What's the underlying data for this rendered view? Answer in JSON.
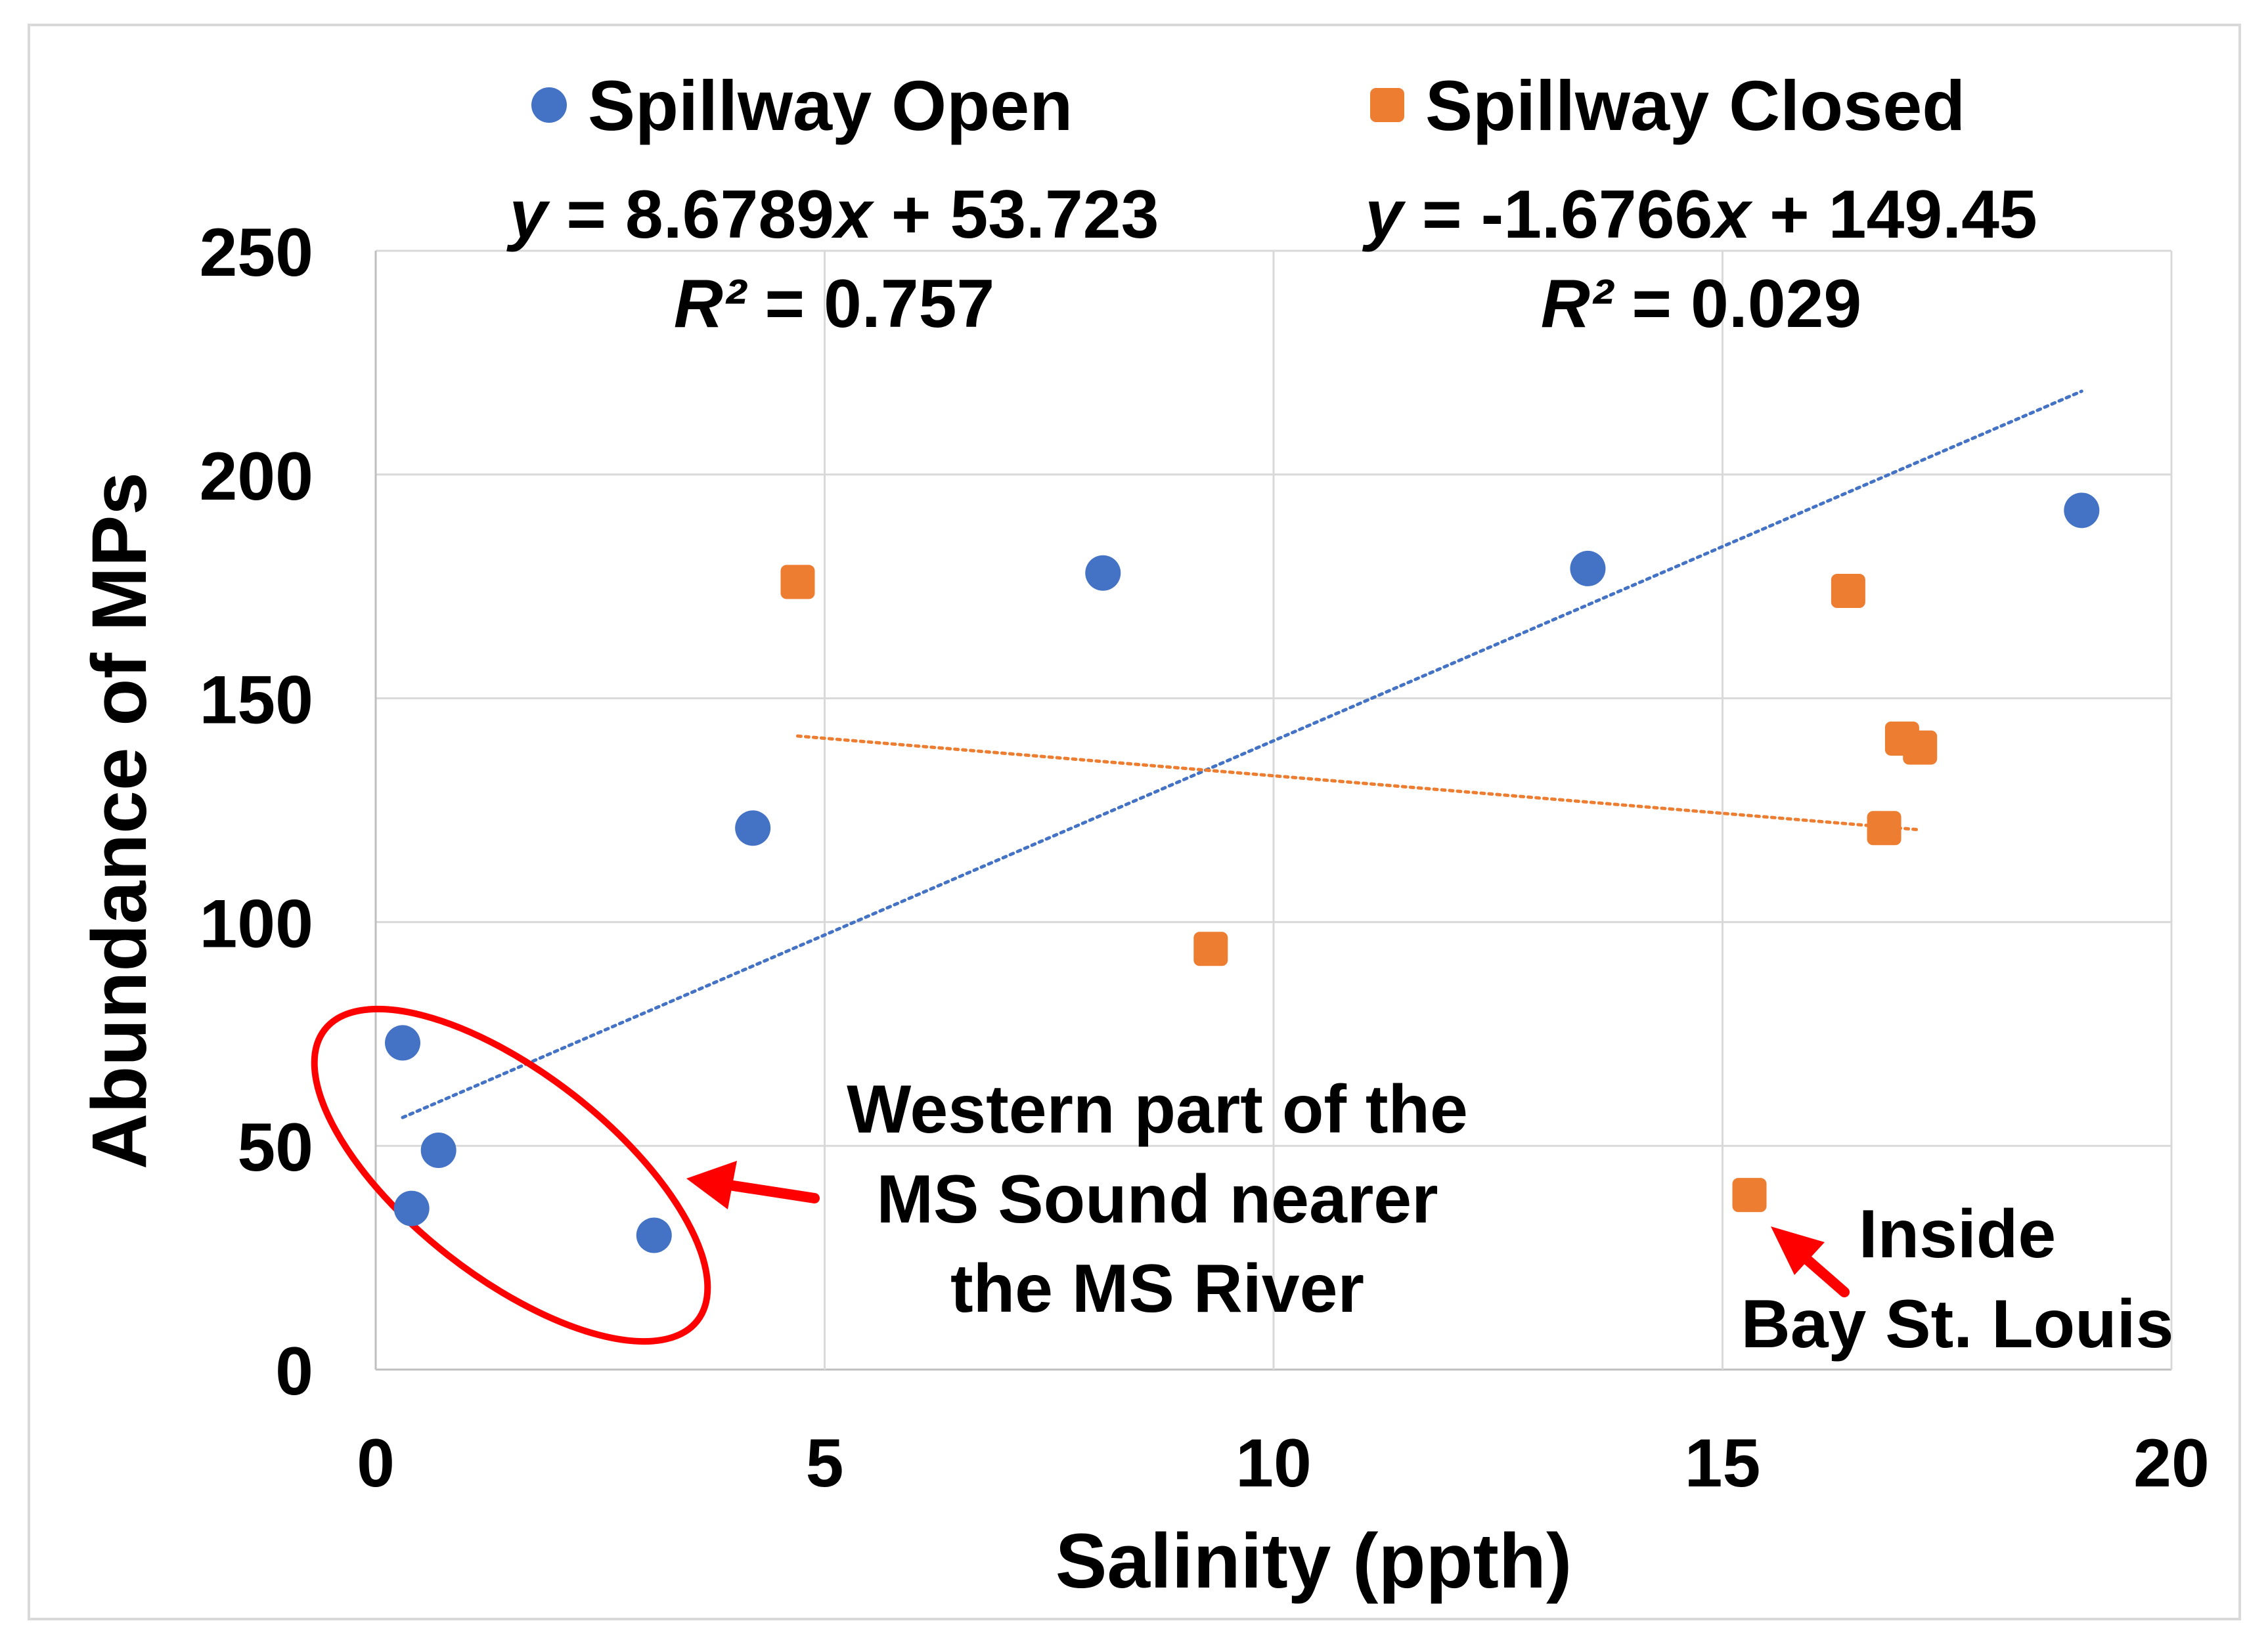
{
  "colors": {
    "open": "#4472C4",
    "closed": "#ED7D31",
    "grid": "#D9D9D9",
    "annotation": "#FF0000",
    "text": "#000000"
  },
  "chart_data": {
    "type": "scatter",
    "title": "",
    "xlabel": "Salinity (ppth)",
    "ylabel": "Abundance of MPs",
    "xlim": [
      0,
      20
    ],
    "ylim": [
      0,
      250
    ],
    "xticks": [
      0,
      5,
      10,
      15,
      20
    ],
    "yticks": [
      0,
      50,
      100,
      150,
      200,
      250
    ],
    "grid": true,
    "legend_position": "top",
    "series": [
      {
        "name": "Spillway Open",
        "marker": "circle",
        "color": "#4472C4",
        "points": [
          {
            "x": 0.3,
            "y": 73
          },
          {
            "x": 0.4,
            "y": 36
          },
          {
            "x": 0.7,
            "y": 49
          },
          {
            "x": 3.1,
            "y": 30
          },
          {
            "x": 4.2,
            "y": 121
          },
          {
            "x": 8.1,
            "y": 178
          },
          {
            "x": 13.5,
            "y": 179
          },
          {
            "x": 19.0,
            "y": 192
          }
        ],
        "trendline": {
          "slope": 8.6789,
          "intercept": 53.723,
          "x_range": [
            0.3,
            19.0
          ],
          "equation_prefix": "y",
          "equation_middle": " = 8.6789",
          "equation_var": "x",
          "equation_suffix": " + 53.723",
          "r2_label": "R²",
          "r2_value": " = 0.757"
        }
      },
      {
        "name": "Spillway Closed",
        "marker": "square",
        "color": "#ED7D31",
        "points": [
          {
            "x": 4.7,
            "y": 176
          },
          {
            "x": 9.3,
            "y": 94
          },
          {
            "x": 15.3,
            "y": 39
          },
          {
            "x": 16.4,
            "y": 174
          },
          {
            "x": 16.8,
            "y": 121
          },
          {
            "x": 17.0,
            "y": 141
          },
          {
            "x": 17.2,
            "y": 139
          }
        ],
        "trendline": {
          "slope": -1.6766,
          "intercept": 149.45,
          "x_range": [
            4.7,
            17.2
          ],
          "equation_prefix": "y",
          "equation_middle": " = -1.6766",
          "equation_var": "x",
          "equation_suffix": " + 149.45",
          "r2_label": "R²",
          "r2_value": " = 0.029"
        }
      }
    ],
    "annotations": [
      {
        "lines": [
          "Western part of the",
          "MS Sound nearer",
          "the MS River"
        ]
      },
      {
        "lines": [
          "Inside",
          "Bay St. Louis"
        ]
      }
    ]
  }
}
